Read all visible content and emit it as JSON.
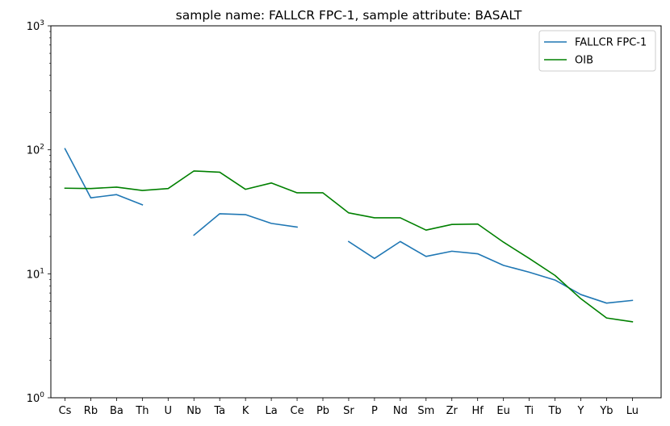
{
  "chart_data": {
    "type": "line",
    "title": "sample name: FALLCR FPC-1, sample attribute: BASALT",
    "xlabel": "",
    "ylabel": "",
    "yscale": "log",
    "ylim": [
      1,
      1000
    ],
    "y_ticks": [
      {
        "value": 1,
        "base": "10",
        "exp": "0"
      },
      {
        "value": 10,
        "base": "10",
        "exp": "1"
      },
      {
        "value": 100,
        "base": "10",
        "exp": "2"
      },
      {
        "value": 1000,
        "base": "10",
        "exp": "3"
      }
    ],
    "categories": [
      "Cs",
      "Rb",
      "Ba",
      "Th",
      "U",
      "Nb",
      "Ta",
      "K",
      "La",
      "Ce",
      "Pb",
      "Sr",
      "P",
      "Nd",
      "Sm",
      "Zr",
      "Hf",
      "Eu",
      "Ti",
      "Tb",
      "Y",
      "Yb",
      "Lu"
    ],
    "series": [
      {
        "name": "FALLCR FPC-1",
        "color": "#1f77b4",
        "values": [
          102,
          41,
          43.5,
          36,
          null,
          20.5,
          30.5,
          30,
          25.5,
          23.8,
          null,
          18.2,
          13.3,
          18.2,
          13.8,
          15.2,
          14.5,
          11.7,
          10.3,
          8.9,
          6.8,
          5.8,
          6.1
        ]
      },
      {
        "name": "OIB",
        "color": "#008000",
        "values": [
          49,
          48.7,
          50,
          47,
          48.7,
          67.5,
          66,
          48,
          54,
          45,
          45,
          31,
          28.3,
          28.3,
          22.5,
          25,
          25.2,
          18,
          13.3,
          9.7,
          6.3,
          4.4,
          4.1
        ]
      }
    ],
    "legend_position": "upper right",
    "grid": false
  }
}
